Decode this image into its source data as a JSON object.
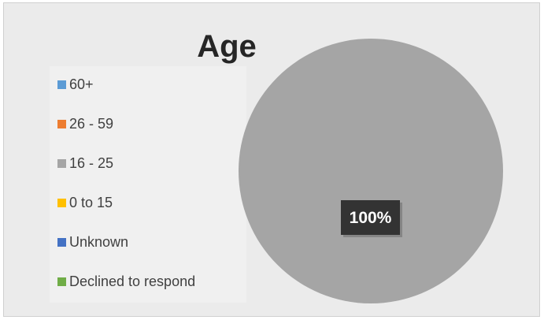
{
  "chart_data": {
    "type": "pie",
    "title": "Age",
    "categories": [
      "60+",
      "26 - 59",
      "16 - 25",
      "0 to 15",
      "Unknown",
      "Declined to respond"
    ],
    "values": [
      0,
      0,
      100,
      0,
      0,
      0
    ],
    "data_labels": [
      "",
      "",
      "100%",
      "",
      "",
      ""
    ],
    "colors": [
      "#5b9bd5",
      "#ed7d31",
      "#a5a5a5",
      "#ffc000",
      "#4472c4",
      "#70ad47"
    ],
    "legend_position": "left"
  }
}
